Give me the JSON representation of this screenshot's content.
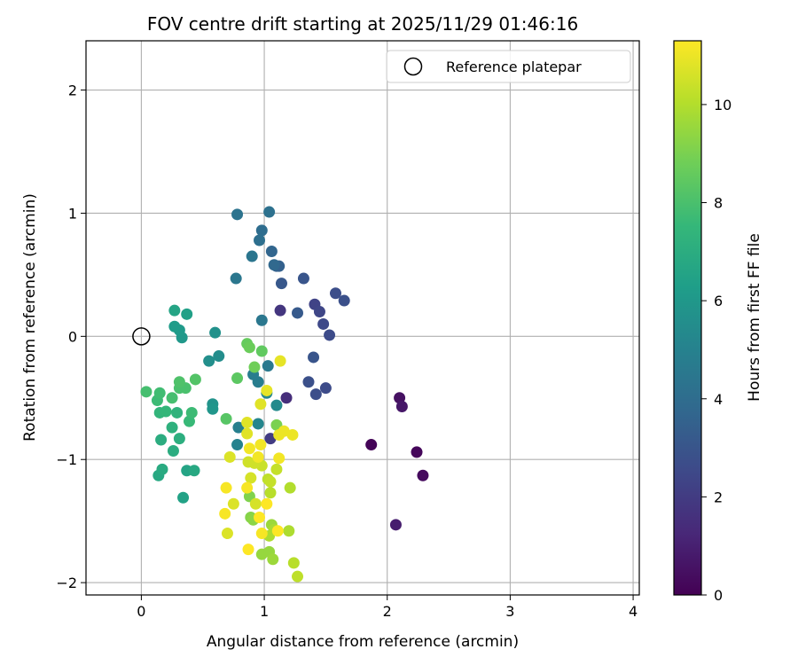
{
  "chart_data": {
    "type": "scatter",
    "title": "FOV centre drift starting at 2025/11/29 01:46:16",
    "xlabel": "Angular distance from reference (arcmin)",
    "ylabel": "Rotation from reference (arcmin)",
    "xlim": [
      -0.45,
      4.05
    ],
    "ylim": [
      -2.1,
      2.4
    ],
    "xticks": [
      0,
      1,
      2,
      3,
      4
    ],
    "yticks": [
      -2,
      -1,
      0,
      1,
      2
    ],
    "grid": true,
    "legend": {
      "position": "top-right",
      "entries": [
        "Reference platepar"
      ]
    },
    "reference_point": {
      "x": 0,
      "y": 0,
      "label": "Reference platepar"
    },
    "colorbar": {
      "label": "Hours from first FF file",
      "range": [
        0,
        11.3
      ],
      "ticks": [
        0,
        2,
        4,
        6,
        8,
        10
      ],
      "colormap": "viridis",
      "colors": [
        "#440154",
        "#482878",
        "#3e4989",
        "#31688e",
        "#26828e",
        "#1f9e89",
        "#35b779",
        "#6ece58",
        "#b5de2b",
        "#fde725"
      ]
    },
    "points": [
      {
        "x": 1.87,
        "y": -0.88,
        "h": 0.1
      },
      {
        "x": 2.24,
        "y": -0.94,
        "h": 0.2
      },
      {
        "x": 2.29,
        "y": -1.13,
        "h": 0.3
      },
      {
        "x": 2.1,
        "y": -0.5,
        "h": 0.5
      },
      {
        "x": 2.12,
        "y": -0.57,
        "h": 0.7
      },
      {
        "x": 2.07,
        "y": -1.53,
        "h": 0.9
      },
      {
        "x": 1.18,
        "y": -0.5,
        "h": 1.5
      },
      {
        "x": 1.13,
        "y": 0.21,
        "h": 1.8
      },
      {
        "x": 1.05,
        "y": -0.83,
        "h": 2.0
      },
      {
        "x": 1.41,
        "y": 0.26,
        "h": 2.3
      },
      {
        "x": 1.45,
        "y": 0.2,
        "h": 2.4
      },
      {
        "x": 1.48,
        "y": 0.1,
        "h": 2.5
      },
      {
        "x": 1.53,
        "y": 0.01,
        "h": 2.6
      },
      {
        "x": 1.58,
        "y": 0.35,
        "h": 2.7
      },
      {
        "x": 1.65,
        "y": 0.29,
        "h": 2.8
      },
      {
        "x": 1.5,
        "y": -0.42,
        "h": 2.6
      },
      {
        "x": 1.42,
        "y": -0.47,
        "h": 2.7
      },
      {
        "x": 1.36,
        "y": -0.37,
        "h": 2.8
      },
      {
        "x": 1.4,
        "y": -0.17,
        "h": 3.0
      },
      {
        "x": 1.32,
        "y": 0.47,
        "h": 3.0
      },
      {
        "x": 1.14,
        "y": 0.43,
        "h": 3.1
      },
      {
        "x": 1.27,
        "y": 0.19,
        "h": 3.2
      },
      {
        "x": 1.1,
        "y": 0.57,
        "h": 3.4
      },
      {
        "x": 1.12,
        "y": 0.57,
        "h": 3.5
      },
      {
        "x": 1.06,
        "y": 0.69,
        "h": 3.7
      },
      {
        "x": 1.08,
        "y": 0.58,
        "h": 3.8
      },
      {
        "x": 0.98,
        "y": 0.86,
        "h": 4.0
      },
      {
        "x": 0.96,
        "y": 0.78,
        "h": 4.1
      },
      {
        "x": 1.04,
        "y": 1.01,
        "h": 4.2
      },
      {
        "x": 0.78,
        "y": 0.99,
        "h": 4.3
      },
      {
        "x": 0.9,
        "y": 0.65,
        "h": 4.4
      },
      {
        "x": 0.77,
        "y": 0.47,
        "h": 4.5
      },
      {
        "x": 0.98,
        "y": 0.13,
        "h": 4.5
      },
      {
        "x": 1.03,
        "y": -0.24,
        "h": 4.6
      },
      {
        "x": 0.95,
        "y": -0.37,
        "h": 4.8
      },
      {
        "x": 0.91,
        "y": -0.31,
        "h": 4.8
      },
      {
        "x": 0.79,
        "y": -0.74,
        "h": 4.9
      },
      {
        "x": 0.78,
        "y": -0.88,
        "h": 5.0
      },
      {
        "x": 0.95,
        "y": -0.71,
        "h": 5.2
      },
      {
        "x": 1.02,
        "y": -0.46,
        "h": 5.3
      },
      {
        "x": 1.1,
        "y": -0.56,
        "h": 5.4
      },
      {
        "x": 0.63,
        "y": -0.16,
        "h": 5.5
      },
      {
        "x": 0.55,
        "y": -0.2,
        "h": 5.6
      },
      {
        "x": 0.6,
        "y": 0.03,
        "h": 5.7
      },
      {
        "x": 0.58,
        "y": -0.55,
        "h": 5.8
      },
      {
        "x": 0.58,
        "y": -0.59,
        "h": 5.9
      },
      {
        "x": 0.33,
        "y": -0.01,
        "h": 6.0
      },
      {
        "x": 0.31,
        "y": 0.05,
        "h": 6.1
      },
      {
        "x": 0.27,
        "y": 0.08,
        "h": 6.2
      },
      {
        "x": 0.37,
        "y": 0.18,
        "h": 6.4
      },
      {
        "x": 0.27,
        "y": 0.21,
        "h": 6.6
      },
      {
        "x": 0.34,
        "y": -1.31,
        "h": 6.5
      },
      {
        "x": 0.37,
        "y": -1.09,
        "h": 6.6
      },
      {
        "x": 0.43,
        "y": -1.09,
        "h": 6.8
      },
      {
        "x": 0.14,
        "y": -1.13,
        "h": 6.8
      },
      {
        "x": 0.17,
        "y": -1.08,
        "h": 6.9
      },
      {
        "x": 0.16,
        "y": -0.84,
        "h": 7.0
      },
      {
        "x": 0.26,
        "y": -0.93,
        "h": 7.0
      },
      {
        "x": 0.31,
        "y": -0.83,
        "h": 7.1
      },
      {
        "x": 0.25,
        "y": -0.74,
        "h": 7.2
      },
      {
        "x": 0.29,
        "y": -0.62,
        "h": 7.3
      },
      {
        "x": 0.15,
        "y": -0.62,
        "h": 7.4
      },
      {
        "x": 0.2,
        "y": -0.61,
        "h": 7.5
      },
      {
        "x": 0.39,
        "y": -0.69,
        "h": 7.6
      },
      {
        "x": 0.41,
        "y": -0.62,
        "h": 7.7
      },
      {
        "x": 0.13,
        "y": -0.52,
        "h": 7.7
      },
      {
        "x": 0.15,
        "y": -0.46,
        "h": 7.8
      },
      {
        "x": 0.04,
        "y": -0.45,
        "h": 7.9
      },
      {
        "x": 0.25,
        "y": -0.5,
        "h": 7.9
      },
      {
        "x": 0.31,
        "y": -0.42,
        "h": 8.0
      },
      {
        "x": 0.36,
        "y": -0.42,
        "h": 8.0
      },
      {
        "x": 0.31,
        "y": -0.37,
        "h": 8.1
      },
      {
        "x": 0.44,
        "y": -0.35,
        "h": 8.2
      },
      {
        "x": 0.69,
        "y": -0.67,
        "h": 8.3
      },
      {
        "x": 0.78,
        "y": -0.34,
        "h": 8.4
      },
      {
        "x": 0.98,
        "y": -0.12,
        "h": 8.5
      },
      {
        "x": 0.86,
        "y": -0.06,
        "h": 8.6
      },
      {
        "x": 0.88,
        "y": -0.09,
        "h": 8.7
      },
      {
        "x": 0.92,
        "y": -0.25,
        "h": 8.8
      },
      {
        "x": 1.1,
        "y": -0.72,
        "h": 9.0
      },
      {
        "x": 0.88,
        "y": -1.3,
        "h": 9.1
      },
      {
        "x": 0.89,
        "y": -1.47,
        "h": 9.2
      },
      {
        "x": 0.91,
        "y": -1.49,
        "h": 9.3
      },
      {
        "x": 0.98,
        "y": -1.77,
        "h": 9.5
      },
      {
        "x": 1.04,
        "y": -1.75,
        "h": 9.5
      },
      {
        "x": 1.07,
        "y": -1.81,
        "h": 9.6
      },
      {
        "x": 1.06,
        "y": -1.53,
        "h": 9.6
      },
      {
        "x": 1.08,
        "y": -1.57,
        "h": 9.8
      },
      {
        "x": 1.04,
        "y": -1.62,
        "h": 9.9
      },
      {
        "x": 1.2,
        "y": -1.58,
        "h": 9.9
      },
      {
        "x": 1.24,
        "y": -1.84,
        "h": 10.1
      },
      {
        "x": 1.27,
        "y": -1.95,
        "h": 10.2
      },
      {
        "x": 1.21,
        "y": -1.23,
        "h": 10.0
      },
      {
        "x": 1.05,
        "y": -1.27,
        "h": 10.1
      },
      {
        "x": 1.03,
        "y": -1.16,
        "h": 10.2
      },
      {
        "x": 1.05,
        "y": -1.18,
        "h": 10.3
      },
      {
        "x": 1.1,
        "y": -1.08,
        "h": 10.3
      },
      {
        "x": 0.98,
        "y": -1.05,
        "h": 10.4
      },
      {
        "x": 0.92,
        "y": -1.03,
        "h": 10.5
      },
      {
        "x": 0.87,
        "y": -1.02,
        "h": 10.5
      },
      {
        "x": 0.89,
        "y": -1.15,
        "h": 10.6
      },
      {
        "x": 0.93,
        "y": -1.36,
        "h": 10.6
      },
      {
        "x": 0.75,
        "y": -1.36,
        "h": 10.7
      },
      {
        "x": 0.7,
        "y": -1.6,
        "h": 10.7
      },
      {
        "x": 0.72,
        "y": -0.98,
        "h": 10.7
      },
      {
        "x": 0.86,
        "y": -0.79,
        "h": 10.8
      },
      {
        "x": 0.86,
        "y": -0.7,
        "h": 10.8
      },
      {
        "x": 0.97,
        "y": -0.55,
        "h": 10.8
      },
      {
        "x": 1.02,
        "y": -0.44,
        "h": 10.9
      },
      {
        "x": 1.13,
        "y": -0.2,
        "h": 10.9
      },
      {
        "x": 1.12,
        "y": -0.8,
        "h": 11.0
      },
      {
        "x": 1.16,
        "y": -0.77,
        "h": 11.0
      },
      {
        "x": 1.23,
        "y": -0.8,
        "h": 11.0
      },
      {
        "x": 0.88,
        "y": -0.91,
        "h": 11.1
      },
      {
        "x": 0.97,
        "y": -0.88,
        "h": 11.1
      },
      {
        "x": 0.95,
        "y": -0.98,
        "h": 11.1
      },
      {
        "x": 1.12,
        "y": -0.99,
        "h": 11.1
      },
      {
        "x": 0.86,
        "y": -1.23,
        "h": 11.2
      },
      {
        "x": 0.69,
        "y": -1.23,
        "h": 11.2
      },
      {
        "x": 0.68,
        "y": -1.44,
        "h": 11.2
      },
      {
        "x": 0.98,
        "y": -1.6,
        "h": 11.2
      },
      {
        "x": 1.11,
        "y": -1.58,
        "h": 11.3
      },
      {
        "x": 0.87,
        "y": -1.73,
        "h": 11.3
      },
      {
        "x": 1.02,
        "y": -1.36,
        "h": 11.3
      },
      {
        "x": 0.96,
        "y": -1.47,
        "h": 11.3
      }
    ]
  }
}
